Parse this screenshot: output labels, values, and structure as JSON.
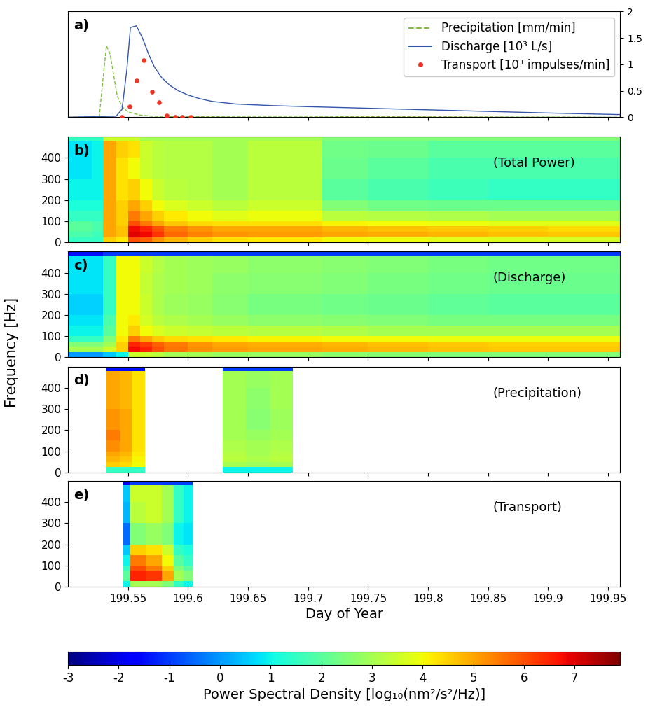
{
  "ylabel": "Frequency [Hz]",
  "color_bar": {
    "label": "Power Spectral Density [log₁₀(nm²/s²/Hz)]",
    "range": [
      -3,
      7.9
    ],
    "ticks": [
      -3,
      -2,
      -1,
      0,
      1,
      2,
      3,
      4,
      5,
      6,
      7
    ]
  },
  "chart_data": [
    {
      "type": "line",
      "panel_label": "a)",
      "xlim": [
        199.5,
        199.96
      ],
      "xticks": [
        199.55,
        199.6,
        199.65,
        199.7,
        199.75,
        199.8,
        199.85,
        199.9,
        199.95
      ],
      "ylim": [
        0,
        2
      ],
      "yticks": [
        0,
        0.5,
        1,
        1.5,
        2
      ],
      "tick_labels": "y",
      "legend": "upper right",
      "series": [
        {
          "name": "Precipitation [mm/min]",
          "type": "line",
          "line_style": "dashed",
          "color": "#7fbf3f",
          "x": [
            199.5,
            199.526,
            199.529,
            199.532,
            199.535,
            199.538,
            199.541,
            199.545,
            199.55,
            199.56,
            199.57,
            199.6,
            199.65,
            199.7,
            199.75,
            199.96
          ],
          "values": [
            0,
            0,
            0.7,
            1.35,
            1.2,
            0.8,
            0.4,
            0.2,
            0.1,
            0.04,
            0.02,
            0.01,
            0.02,
            0.02,
            0.01,
            0
          ]
        },
        {
          "name": "Discharge [10³ L/s]",
          "type": "line",
          "line_style": "solid",
          "color": "#3355aa",
          "x": [
            199.5,
            199.54,
            199.545,
            199.549,
            199.552,
            199.557,
            199.562,
            199.567,
            199.572,
            199.578,
            199.585,
            199.592,
            199.6,
            199.61,
            199.62,
            199.64,
            199.67,
            199.7,
            199.75,
            199.8,
            199.85,
            199.9,
            199.96
          ],
          "values": [
            0,
            0.02,
            0.15,
            0.9,
            1.7,
            1.73,
            1.5,
            1.2,
            0.95,
            0.75,
            0.6,
            0.5,
            0.42,
            0.35,
            0.3,
            0.25,
            0.22,
            0.2,
            0.17,
            0.14,
            0.11,
            0.08,
            0.05
          ]
        },
        {
          "name": "Transport [10³ impulses/min]",
          "type": "scatter",
          "marker": "o",
          "color": "#ee3322",
          "x": [
            199.545,
            199.551,
            199.557,
            199.563,
            199.57,
            199.576,
            199.582,
            199.589,
            199.595,
            199.602
          ],
          "values": [
            0,
            0.2,
            0.7,
            1.08,
            0.48,
            0.28,
            0.03,
            0,
            0,
            0
          ]
        }
      ]
    },
    {
      "type": "heatmap",
      "panel_label": "b)",
      "annotation": "(Total Power)",
      "tick_labels": "y",
      "xlim": [
        199.5,
        199.96
      ],
      "xticks": [
        199.55,
        199.6,
        199.65,
        199.7,
        199.75,
        199.8,
        199.85,
        199.9,
        199.95
      ],
      "ylim": [
        0,
        500
      ],
      "yticks": [
        0,
        100,
        200,
        300,
        400
      ],
      "x_edges": [
        199.5,
        199.52,
        199.529,
        199.54,
        199.55,
        199.56,
        199.57,
        199.58,
        199.6,
        199.62,
        199.65,
        199.7,
        199.712,
        199.75,
        199.8,
        199.85,
        199.9,
        199.96
      ],
      "y_edges": [
        0,
        25,
        50,
        75,
        100,
        150,
        200,
        300,
        400,
        480,
        500
      ],
      "cells": [
        [
          1.5,
          1.5,
          4.5,
          4.2,
          6.0,
          5.8,
          5.2,
          4.8,
          4.5,
          4.3,
          4.2,
          4.2,
          4.0,
          3.9,
          3.8,
          3.7,
          3.6
        ],
        [
          1.8,
          1.6,
          5.0,
          4.7,
          7.0,
          6.8,
          6.3,
          5.7,
          5.4,
          5.2,
          5.1,
          5.1,
          5.0,
          4.9,
          4.8,
          4.7,
          4.6
        ],
        [
          2.0,
          1.8,
          5.0,
          4.7,
          6.8,
          6.5,
          6.0,
          5.5,
          5.2,
          5.0,
          5.0,
          5.0,
          4.8,
          4.7,
          4.6,
          4.5,
          4.4
        ],
        [
          2.0,
          1.8,
          5.0,
          4.5,
          6.0,
          5.5,
          5.0,
          4.6,
          4.4,
          4.3,
          4.3,
          4.3,
          4.1,
          4.0,
          3.9,
          3.8,
          3.8
        ],
        [
          1.5,
          1.5,
          5.0,
          4.5,
          5.5,
          5.0,
          4.5,
          4.2,
          4.0,
          3.8,
          3.9,
          3.9,
          3.3,
          3.2,
          3.1,
          3.0,
          3.0
        ],
        [
          1.2,
          1.2,
          5.0,
          4.5,
          5.0,
          4.5,
          4.0,
          3.7,
          3.5,
          3.3,
          3.5,
          3.5,
          2.5,
          2.3,
          2.2,
          2.2,
          2.2
        ],
        [
          1.0,
          1.0,
          5.0,
          4.3,
          4.5,
          4.0,
          3.5,
          3.3,
          3.2,
          3.0,
          3.3,
          3.3,
          2.0,
          1.8,
          1.6,
          1.5,
          1.5
        ],
        [
          0.8,
          1.0,
          5.0,
          4.3,
          4.0,
          3.5,
          3.3,
          3.2,
          3.2,
          3.0,
          3.3,
          3.3,
          2.2,
          2.0,
          1.8,
          1.8,
          1.8
        ],
        [
          0.8,
          1.0,
          5.0,
          4.5,
          4.3,
          3.5,
          3.3,
          3.2,
          3.2,
          3.0,
          3.3,
          3.3,
          2.3,
          2.2,
          2.0,
          2.0,
          2.0
        ],
        [
          1.5,
          1.5,
          3.5,
          3.5,
          3.5,
          3.0,
          3.0,
          3.0,
          3.0,
          3.0,
          3.0,
          3.0,
          2.5,
          2.5,
          2.5,
          2.5,
          2.5
        ]
      ]
    },
    {
      "type": "heatmap",
      "panel_label": "c)",
      "annotation": "(Discharge)",
      "tick_labels": "y",
      "xlim": [
        199.5,
        199.96
      ],
      "xticks": [
        199.55,
        199.6,
        199.65,
        199.7,
        199.75,
        199.8,
        199.85,
        199.9,
        199.95
      ],
      "ylim": [
        0,
        500
      ],
      "yticks": [
        0,
        100,
        200,
        300,
        400
      ],
      "x_edges": [
        199.5,
        199.52,
        199.529,
        199.54,
        199.55,
        199.56,
        199.57,
        199.58,
        199.6,
        199.62,
        199.65,
        199.7,
        199.712,
        199.75,
        199.8,
        199.85,
        199.9,
        199.96
      ],
      "y_edges": [
        0,
        25,
        50,
        75,
        100,
        150,
        200,
        300,
        400,
        480,
        500
      ],
      "cells": [
        [
          0.0,
          0.0,
          0.5,
          1.0,
          3.5,
          3.5,
          3.3,
          3.0,
          3.0,
          2.9,
          2.8,
          2.8,
          2.7,
          2.6,
          2.5,
          2.5,
          2.5
        ],
        [
          3.0,
          3.0,
          3.5,
          4.5,
          6.8,
          6.5,
          6.0,
          5.6,
          5.3,
          5.1,
          5.0,
          5.0,
          4.9,
          4.8,
          4.7,
          4.6,
          4.6
        ],
        [
          2.5,
          2.5,
          3.0,
          4.5,
          6.5,
          6.2,
          5.8,
          5.5,
          5.2,
          5.0,
          4.9,
          4.9,
          4.8,
          4.7,
          4.6,
          4.5,
          4.5
        ],
        [
          1.5,
          1.5,
          2.5,
          4.2,
          5.5,
          5.0,
          4.6,
          4.4,
          4.3,
          4.2,
          4.1,
          4.1,
          4.0,
          4.0,
          3.9,
          3.9,
          3.9
        ],
        [
          1.0,
          1.0,
          2.0,
          4.0,
          4.5,
          4.0,
          3.7,
          3.5,
          3.4,
          3.3,
          3.2,
          3.2,
          3.1,
          3.0,
          3.0,
          3.0,
          3.0
        ],
        [
          0.8,
          0.8,
          1.8,
          4.0,
          4.2,
          3.6,
          3.3,
          3.1,
          3.0,
          2.8,
          2.7,
          2.7,
          2.6,
          2.5,
          2.4,
          2.4,
          2.4
        ],
        [
          0.6,
          0.6,
          1.5,
          4.0,
          4.0,
          3.5,
          3.1,
          2.9,
          2.8,
          2.6,
          2.4,
          2.4,
          2.3,
          2.2,
          2.1,
          2.0,
          2.0
        ],
        [
          0.8,
          0.8,
          1.5,
          4.0,
          4.0,
          3.4,
          3.1,
          3.0,
          2.9,
          2.7,
          2.6,
          2.6,
          2.5,
          2.4,
          2.3,
          2.2,
          2.2
        ],
        [
          0.8,
          0.8,
          1.5,
          4.0,
          4.0,
          3.5,
          3.2,
          3.0,
          2.9,
          2.8,
          2.7,
          2.7,
          2.6,
          2.5,
          2.4,
          2.3,
          2.3
        ],
        [
          -1.5,
          -1.5,
          -1,
          -1,
          -1,
          -1,
          -1,
          -1,
          -1,
          -1,
          -1,
          -1,
          -1,
          -1,
          -1,
          -1,
          -1
        ]
      ]
    },
    {
      "type": "heatmap",
      "panel_label": "d)",
      "annotation": "(Precipitation)",
      "tick_labels": "y",
      "xlim": [
        199.5,
        199.96
      ],
      "xticks": [
        199.55,
        199.6,
        199.65,
        199.7,
        199.75,
        199.8,
        199.85,
        199.9,
        199.95
      ],
      "ylim": [
        0,
        500
      ],
      "yticks": [
        0,
        100,
        200,
        300,
        400
      ],
      "x_edges": [
        199.532,
        199.543,
        199.553,
        199.564,
        199.629,
        199.648,
        199.668,
        199.687
      ],
      "y_edges": [
        0,
        25,
        50,
        75,
        100,
        150,
        200,
        300,
        400,
        480,
        500
      ],
      "cells": [
        [
          1.5,
          1.5,
          1.5,
          null,
          1.0,
          1.0,
          1.0
        ],
        [
          4.5,
          4.4,
          4.0,
          null,
          3.0,
          2.9,
          3.0
        ],
        [
          4.8,
          4.6,
          4.1,
          null,
          3.3,
          3.1,
          3.3
        ],
        [
          5.0,
          4.8,
          4.2,
          null,
          3.2,
          3.0,
          3.2
        ],
        [
          5.3,
          5.0,
          4.3,
          null,
          3.1,
          3.0,
          3.1
        ],
        [
          5.5,
          5.0,
          4.3,
          null,
          3.0,
          2.8,
          3.0
        ],
        [
          5.2,
          5.0,
          4.3,
          null,
          3.0,
          2.6,
          2.9
        ],
        [
          5.0,
          4.8,
          4.3,
          null,
          3.0,
          2.7,
          3.0
        ],
        [
          5.0,
          4.8,
          4.3,
          null,
          3.0,
          2.8,
          3.0
        ],
        [
          -1.5,
          -1.5,
          -1.5,
          null,
          -1,
          -1,
          -1
        ]
      ]
    },
    {
      "type": "heatmap",
      "panel_label": "e)",
      "annotation": "(Transport)",
      "xlabel": "Day of Year",
      "xlim": [
        199.5,
        199.96
      ],
      "xticks": [
        199.55,
        199.6,
        199.65,
        199.7,
        199.75,
        199.8,
        199.85,
        199.9,
        199.95
      ],
      "ylim": [
        0,
        500
      ],
      "yticks": [
        0,
        100,
        200,
        300,
        400
      ],
      "x_edges": [
        199.546,
        199.552,
        199.565,
        199.578,
        199.588,
        199.596,
        199.604
      ],
      "y_edges": [
        0,
        25,
        50,
        75,
        100,
        150,
        200,
        300,
        400,
        480,
        500
      ],
      "cells": [
        [
          1.0,
          3.0,
          3.0,
          2.5,
          1.5,
          1.0
        ],
        [
          2.0,
          6.5,
          6.3,
          5.0,
          3.0,
          2.5
        ],
        [
          2.0,
          6.5,
          6.3,
          5.0,
          3.0,
          2.5
        ],
        [
          1.5,
          6.0,
          5.5,
          4.5,
          2.5,
          2.0
        ],
        [
          1.0,
          5.5,
          5.0,
          4.0,
          2.0,
          1.5
        ],
        [
          0.5,
          4.5,
          4.3,
          3.5,
          1.5,
          1.2
        ],
        [
          -0.5,
          2.5,
          2.8,
          2.5,
          1.0,
          0.8
        ],
        [
          0.3,
          3.3,
          3.5,
          3.0,
          1.5,
          1.0
        ],
        [
          0.5,
          3.5,
          3.5,
          3.0,
          1.5,
          1.0
        ],
        [
          -2,
          -1,
          -1,
          -1,
          -1,
          -1
        ]
      ]
    }
  ]
}
